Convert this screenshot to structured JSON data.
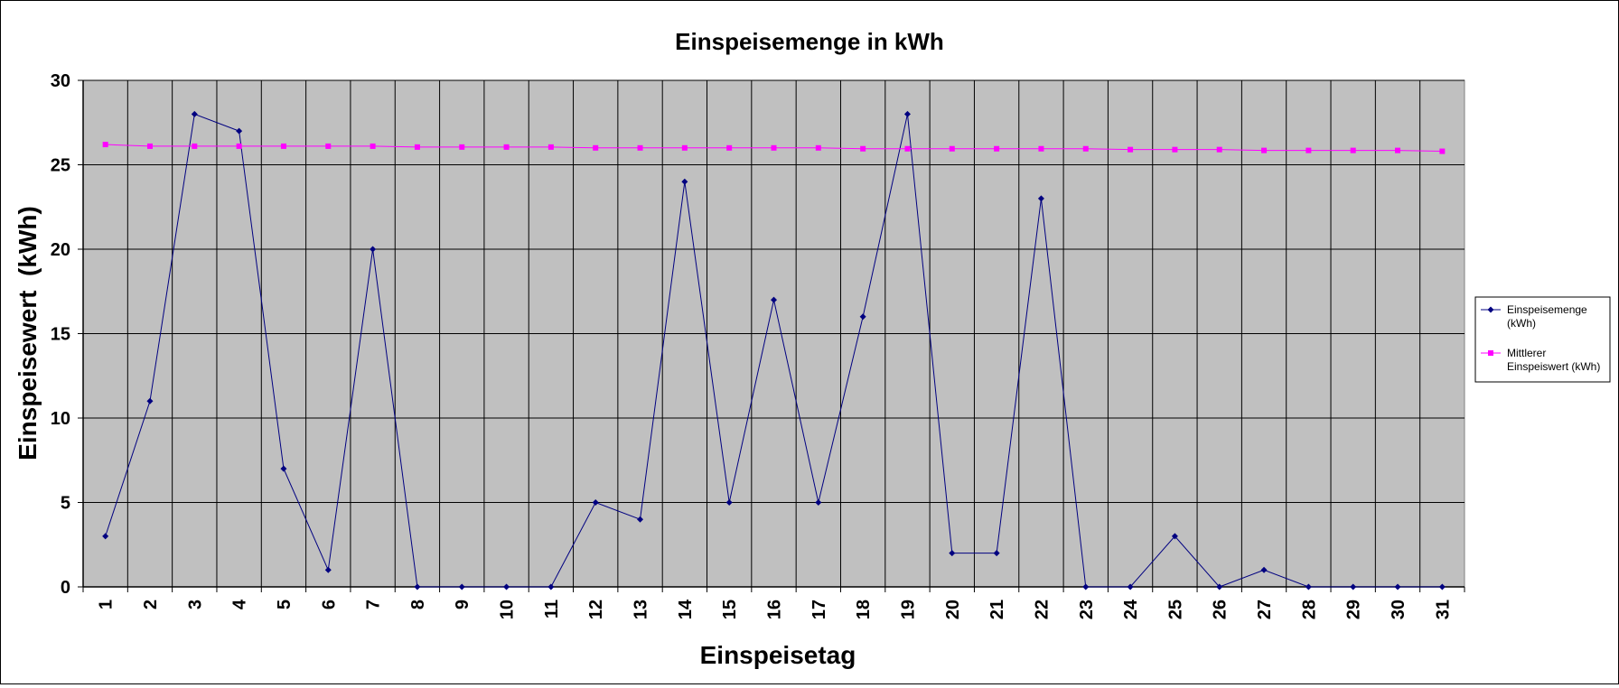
{
  "chart_data": {
    "type": "line",
    "title": "Einspeisemenge in kWh",
    "xlabel": "Einspeisetag",
    "ylabel": "Einspeisewert  (kWh)",
    "categories": [
      "1",
      "2",
      "3",
      "4",
      "5",
      "6",
      "7",
      "8",
      "9",
      "10",
      "11",
      "12",
      "13",
      "14",
      "15",
      "16",
      "17",
      "18",
      "19",
      "20",
      "21",
      "22",
      "23",
      "24",
      "25",
      "26",
      "27",
      "28",
      "29",
      "30",
      "31"
    ],
    "y_ticks": [
      "0",
      "5",
      "10",
      "15",
      "20",
      "25",
      "30"
    ],
    "ylim": [
      0,
      30
    ],
    "grid": true,
    "legend_position": "right",
    "series": [
      {
        "name": "Einspeisemenge (kWh)",
        "legend_lines": [
          "Einspeisemenge",
          "(kWh)"
        ],
        "color": "#000080",
        "marker": "diamond",
        "values": [
          3,
          11,
          28,
          27,
          7,
          1,
          20,
          0,
          0,
          0,
          0,
          5,
          4,
          24,
          5,
          17,
          5,
          16,
          28,
          2,
          2,
          23,
          0,
          0,
          3,
          0,
          1,
          0,
          0,
          0,
          0
        ]
      },
      {
        "name": "Mittlerer Einspeiswert (kWh)",
        "legend_lines": [
          "Mittlerer",
          "Einspeiswert (kWh)"
        ],
        "color": "#ff00ff",
        "marker": "square",
        "values": [
          26.2,
          26.1,
          26.1,
          26.1,
          26.1,
          26.1,
          26.1,
          26.05,
          26.05,
          26.05,
          26.05,
          26.0,
          26.0,
          26.0,
          26.0,
          26.0,
          26.0,
          25.95,
          25.95,
          25.95,
          25.95,
          25.95,
          25.95,
          25.9,
          25.9,
          25.9,
          25.85,
          25.85,
          25.85,
          25.85,
          25.8
        ]
      }
    ],
    "plot_background": "#c0c0c0"
  }
}
